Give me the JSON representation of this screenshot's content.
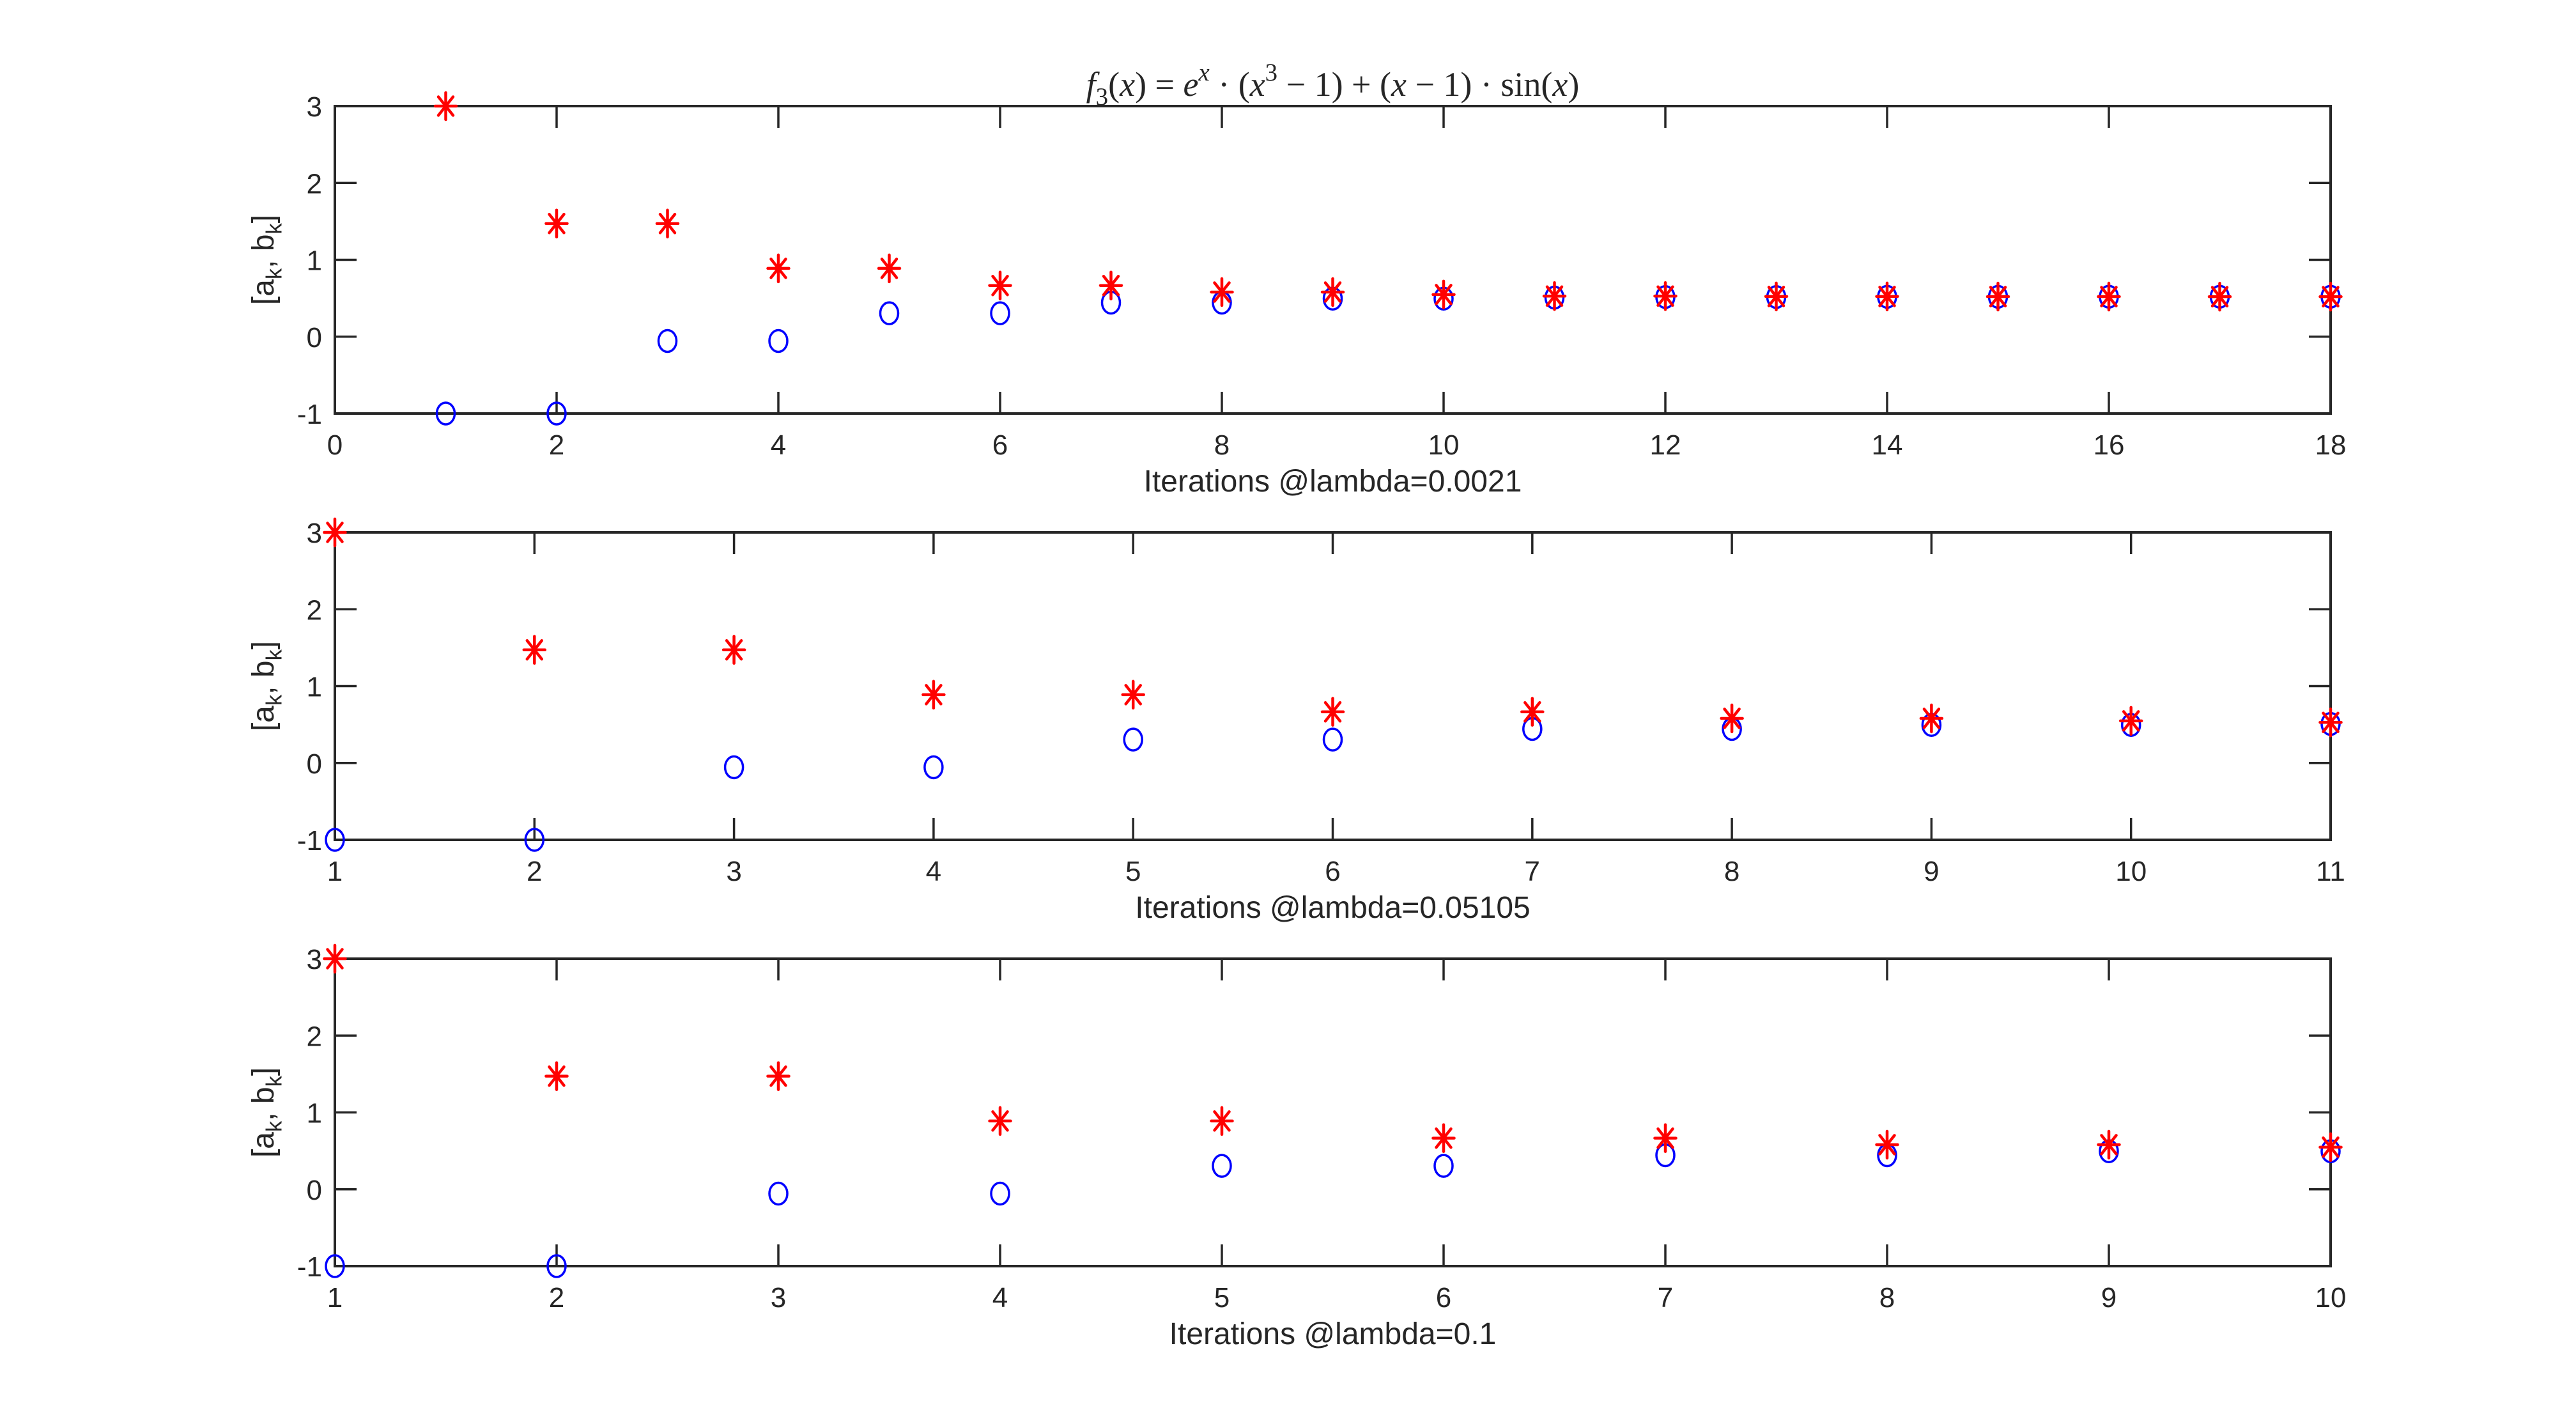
{
  "figure": {
    "background": "#ffffff",
    "axis_color": "#262626",
    "text_color": "#262626",
    "title_plain": "f3(x) = e^x · (x^3 − 1) + (x − 1) · sin(x)",
    "title_segments": [
      {
        "text": "f",
        "style": "italic"
      },
      {
        "text": "3",
        "style": "normal",
        "script": "sub"
      },
      {
        "text": "(",
        "style": "normal"
      },
      {
        "text": "x",
        "style": "italic"
      },
      {
        "text": ") = ",
        "style": "normal"
      },
      {
        "text": "e",
        "style": "italic"
      },
      {
        "text": "x",
        "style": "italic",
        "script": "sup"
      },
      {
        "text": " · (",
        "style": "normal"
      },
      {
        "text": "x",
        "style": "italic"
      },
      {
        "text": "3",
        "style": "normal",
        "script": "sup"
      },
      {
        "text": " − 1) + (",
        "style": "normal"
      },
      {
        "text": "x",
        "style": "italic"
      },
      {
        "text": " − 1) · sin(",
        "style": "normal"
      },
      {
        "text": "x",
        "style": "italic"
      },
      {
        "text": ")",
        "style": "normal"
      }
    ],
    "ylabel_plain": "[a_k, b_k]",
    "ylabel_segments": [
      {
        "text": "[a"
      },
      {
        "text": "k",
        "script": "sub"
      },
      {
        "text": ", b"
      },
      {
        "text": "k",
        "script": "sub"
      },
      {
        "text": "]"
      }
    ],
    "series_colors": {
      "a_k": "#0000FF",
      "b_k": "#FF0000"
    },
    "marker_shapes": {
      "a_k": "circle",
      "b_k": "asterisk"
    }
  },
  "chart_data": [
    {
      "type": "scatter",
      "title": "f3(x) = e^x · (x^3 − 1) + (x − 1) · sin(x)",
      "xlabel": "Iterations @lambda=0.0021",
      "ylabel": "[a_k, b_k]",
      "xlim": [
        0,
        18
      ],
      "ylim": [
        -1,
        3
      ],
      "xticks": [
        0,
        2,
        4,
        6,
        8,
        10,
        12,
        14,
        16,
        18
      ],
      "yticks": [
        -1,
        0,
        1,
        2,
        3
      ],
      "grid": false,
      "legend": null,
      "x": [
        1,
        2,
        3,
        4,
        5,
        6,
        7,
        8,
        9,
        10,
        11,
        12,
        13,
        14,
        15,
        16,
        17,
        18
      ],
      "series": [
        {
          "name": "a_k",
          "marker": "circle",
          "color": "#0000FF",
          "values": [
            -1,
            -1,
            -0.0557,
            -0.0557,
            0.305,
            0.305,
            0.4427,
            0.4427,
            0.4953,
            0.4953,
            0.5078,
            0.5154,
            0.5154,
            0.5184,
            0.5184,
            0.5195,
            0.5195,
            0.5199
          ]
        },
        {
          "name": "b_k",
          "marker": "asterisk",
          "color": "#FF0000",
          "values": [
            3,
            1.4721,
            1.4721,
            0.8885,
            0.8885,
            0.6656,
            0.6656,
            0.5805,
            0.5805,
            0.5479,
            0.5279,
            0.5279,
            0.5232,
            0.5232,
            0.5214,
            0.5214,
            0.5203,
            0.5203
          ]
        }
      ]
    },
    {
      "type": "scatter",
      "title": "",
      "xlabel": "Iterations @lambda=0.05105",
      "ylabel": "[a_k, b_k]",
      "xlim": [
        1,
        11
      ],
      "ylim": [
        -1,
        3
      ],
      "xticks": [
        1,
        2,
        3,
        4,
        5,
        6,
        7,
        8,
        9,
        10,
        11
      ],
      "yticks": [
        -1,
        0,
        1,
        2,
        3
      ],
      "grid": false,
      "legend": null,
      "x": [
        1,
        2,
        3,
        4,
        5,
        6,
        7,
        8,
        9,
        10,
        11
      ],
      "series": [
        {
          "name": "a_k",
          "marker": "circle",
          "color": "#0000FF",
          "values": [
            -1,
            -1,
            -0.0557,
            -0.0557,
            0.305,
            0.305,
            0.4427,
            0.4427,
            0.4953,
            0.4953,
            0.5078
          ]
        },
        {
          "name": "b_k",
          "marker": "asterisk",
          "color": "#FF0000",
          "values": [
            3,
            1.4721,
            1.4721,
            0.8885,
            0.8885,
            0.6656,
            0.6656,
            0.5805,
            0.5805,
            0.5479,
            0.5279
          ]
        }
      ]
    },
    {
      "type": "scatter",
      "title": "",
      "xlabel": "Iterations @lambda=0.1",
      "ylabel": "[a_k, b_k]",
      "xlim": [
        1,
        10
      ],
      "ylim": [
        -1,
        3
      ],
      "xticks": [
        1,
        2,
        3,
        4,
        5,
        6,
        7,
        8,
        9,
        10
      ],
      "yticks": [
        -1,
        0,
        1,
        2,
        3
      ],
      "grid": false,
      "legend": null,
      "x": [
        1,
        2,
        3,
        4,
        5,
        6,
        7,
        8,
        9,
        10
      ],
      "series": [
        {
          "name": "a_k",
          "marker": "circle",
          "color": "#0000FF",
          "values": [
            -1,
            -1,
            -0.0557,
            -0.0557,
            0.305,
            0.305,
            0.4427,
            0.4427,
            0.4953,
            0.4953
          ]
        },
        {
          "name": "b_k",
          "marker": "asterisk",
          "color": "#FF0000",
          "values": [
            3,
            1.4721,
            1.4721,
            0.8885,
            0.8885,
            0.6656,
            0.6656,
            0.5805,
            0.5805,
            0.5479
          ]
        }
      ]
    }
  ]
}
